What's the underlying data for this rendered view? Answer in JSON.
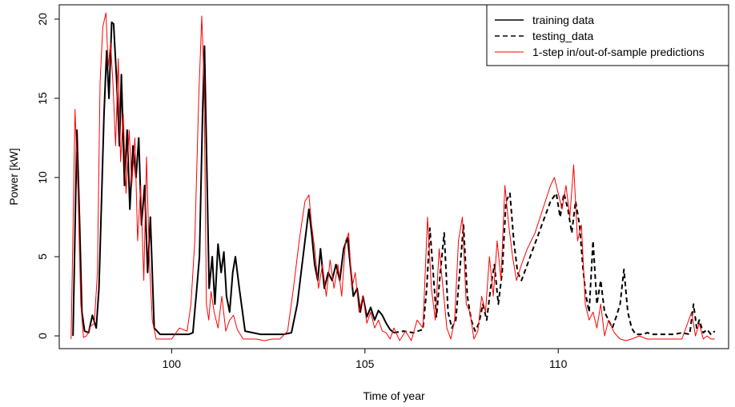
{
  "chart_data": {
    "type": "line",
    "title": "",
    "xlabel": "Time of year",
    "ylabel": "Power [kW]",
    "xlim": [
      97.3,
      114.2
    ],
    "ylim": [
      -0.3,
      20.4
    ],
    "x_ticks": [
      100,
      105,
      110
    ],
    "y_ticks": [
      0,
      5,
      10,
      15,
      20
    ],
    "grid": false,
    "legend_position": "top-right",
    "series": [
      {
        "name": "training data",
        "color": "#000000",
        "style": "solid",
        "x": [
          97.45,
          97.55,
          97.62,
          97.68,
          97.75,
          97.85,
          97.95,
          98.05,
          98.12,
          98.18,
          98.25,
          98.32,
          98.38,
          98.45,
          98.5,
          98.58,
          98.65,
          98.7,
          98.78,
          98.85,
          98.92,
          99.0,
          99.08,
          99.15,
          99.22,
          99.3,
          99.38,
          99.45,
          99.55,
          99.7,
          99.9,
          100.1,
          100.3,
          100.45,
          100.55,
          100.65,
          100.72,
          100.8,
          100.85,
          100.9,
          100.97,
          101.05,
          101.12,
          101.2,
          101.28,
          101.35,
          101.42,
          101.5,
          101.58,
          101.65,
          101.75,
          101.9,
          102.1,
          102.3,
          102.5,
          102.7,
          102.9,
          103.1,
          103.25,
          103.35,
          103.45,
          103.55,
          103.62,
          103.7,
          103.78,
          103.85,
          103.95,
          104.05,
          104.15,
          104.25,
          104.35,
          104.45,
          104.55,
          104.62,
          104.7,
          104.8,
          104.88,
          104.95,
          105.05,
          105.15,
          105.25,
          105.35,
          105.45,
          105.55,
          105.65,
          105.75
        ],
        "values": [
          0.0,
          13.0,
          7.0,
          1.5,
          0.3,
          0.2,
          1.3,
          0.5,
          3.0,
          8.0,
          14.0,
          18.0,
          15.0,
          19.8,
          19.7,
          16.0,
          12.0,
          16.5,
          9.5,
          13.0,
          8.0,
          12.0,
          10.0,
          12.5,
          7.0,
          9.5,
          4.0,
          7.5,
          0.5,
          0.1,
          0.1,
          0.1,
          0.1,
          0.1,
          0.2,
          3.0,
          5.0,
          14.0,
          18.3,
          12.0,
          3.0,
          5.0,
          2.0,
          5.8,
          4.0,
          5.3,
          2.5,
          1.5,
          4.0,
          5.0,
          3.0,
          0.3,
          0.2,
          0.1,
          0.1,
          0.1,
          0.1,
          0.2,
          2.0,
          4.0,
          6.0,
          8.0,
          6.5,
          4.5,
          3.5,
          5.5,
          3.0,
          4.0,
          3.5,
          4.5,
          3.5,
          5.5,
          6.2,
          4.5,
          2.5,
          3.0,
          1.5,
          2.5,
          1.2,
          1.8,
          1.0,
          1.6,
          1.3,
          0.8,
          0.4,
          0.2
        ]
      },
      {
        "name": "testing_data",
        "color": "#000000",
        "style": "dashed",
        "x": [
          105.75,
          106.0,
          106.25,
          106.5,
          106.6,
          106.68,
          106.75,
          106.85,
          106.95,
          107.05,
          107.15,
          107.25,
          107.35,
          107.45,
          107.55,
          107.65,
          107.75,
          107.85,
          107.95,
          108.05,
          108.15,
          108.25,
          108.35,
          108.45,
          108.55,
          108.65,
          108.75,
          108.85,
          108.95,
          109.05,
          109.2,
          109.35,
          109.5,
          109.65,
          109.8,
          109.95,
          110.05,
          110.15,
          110.25,
          110.35,
          110.45,
          110.55,
          110.65,
          110.72,
          110.8,
          110.9,
          111.0,
          111.1,
          111.2,
          111.3,
          111.4,
          111.5,
          111.6,
          111.7,
          111.8,
          111.9,
          112.0,
          112.1,
          112.2,
          112.3,
          112.45,
          112.6,
          112.8,
          113.0,
          113.2,
          113.4,
          113.5,
          113.58,
          113.65,
          113.75,
          113.85,
          113.95,
          114.05
        ],
        "values": [
          0.2,
          0.3,
          0.2,
          0.4,
          3.0,
          6.8,
          4.5,
          1.2,
          4.0,
          6.5,
          1.5,
          0.5,
          1.0,
          4.0,
          7.0,
          2.5,
          1.0,
          0.3,
          0.8,
          2.0,
          1.0,
          3.0,
          4.5,
          2.0,
          4.0,
          8.5,
          9.0,
          6.0,
          4.0,
          3.5,
          4.5,
          5.5,
          6.5,
          7.5,
          8.5,
          9.0,
          7.5,
          9.0,
          8.0,
          6.5,
          8.5,
          7.0,
          4.0,
          2.5,
          1.5,
          6.0,
          2.0,
          3.5,
          1.5,
          1.0,
          0.5,
          1.2,
          2.0,
          4.2,
          1.5,
          0.5,
          0.1,
          0.1,
          0.1,
          0.2,
          0.1,
          0.1,
          0.1,
          0.1,
          0.2,
          0.1,
          2.0,
          0.5,
          1.0,
          0.2,
          0.4,
          0.1,
          0.3
        ]
      },
      {
        "name": "1-step in/out-of-sample predictions",
        "color": "#ff0000",
        "style": "solid",
        "x": [
          97.4,
          97.5,
          97.58,
          97.65,
          97.72,
          97.8,
          97.9,
          98.0,
          98.08,
          98.15,
          98.22,
          98.3,
          98.36,
          98.42,
          98.48,
          98.55,
          98.62,
          98.68,
          98.75,
          98.82,
          98.9,
          98.97,
          99.05,
          99.12,
          99.2,
          99.28,
          99.35,
          99.42,
          99.5,
          99.6,
          99.8,
          100.0,
          100.2,
          100.4,
          100.5,
          100.6,
          100.7,
          100.78,
          100.84,
          100.9,
          100.96,
          101.02,
          101.1,
          101.2,
          101.3,
          101.4,
          101.5,
          101.6,
          101.7,
          101.85,
          102.0,
          102.2,
          102.4,
          102.6,
          102.8,
          103.0,
          103.15,
          103.3,
          103.45,
          103.55,
          103.62,
          103.7,
          103.8,
          103.9,
          104.0,
          104.1,
          104.2,
          104.3,
          104.4,
          104.5,
          104.58,
          104.66,
          104.75,
          104.85,
          104.95,
          105.05,
          105.15,
          105.25,
          105.35,
          105.45,
          105.55,
          105.65,
          105.75,
          105.9,
          106.05,
          106.2,
          106.35,
          106.5,
          106.62,
          106.72,
          106.82,
          106.92,
          107.02,
          107.12,
          107.22,
          107.32,
          107.42,
          107.52,
          107.62,
          107.72,
          107.82,
          107.92,
          108.02,
          108.12,
          108.22,
          108.32,
          108.42,
          108.52,
          108.62,
          108.72,
          108.82,
          108.92,
          109.05,
          109.2,
          109.4,
          109.6,
          109.8,
          109.9,
          110.0,
          110.1,
          110.2,
          110.3,
          110.4,
          110.5,
          110.6,
          110.7,
          110.8,
          110.9,
          111.0,
          111.1,
          111.2,
          111.3,
          111.45,
          111.6,
          111.75,
          111.9,
          112.1,
          112.3,
          112.6,
          112.9,
          113.2,
          113.45,
          113.55,
          113.65,
          113.75,
          113.85,
          113.95,
          114.05
        ],
        "values": [
          -0.2,
          14.3,
          9.0,
          2.0,
          -0.1,
          0.0,
          0.6,
          0.8,
          4.0,
          16.0,
          19.5,
          20.4,
          17.0,
          18.5,
          16.0,
          12.0,
          17.5,
          11.0,
          14.0,
          9.0,
          13.0,
          9.5,
          12.5,
          6.0,
          9.5,
          3.5,
          11.3,
          5.0,
          1.0,
          -0.2,
          -0.2,
          -0.2,
          0.5,
          0.3,
          2.0,
          6.0,
          15.0,
          20.2,
          16.0,
          2.0,
          1.0,
          2.8,
          1.5,
          0.5,
          2.5,
          0.3,
          1.0,
          1.3,
          0.4,
          -0.2,
          -0.2,
          -0.2,
          -0.3,
          -0.2,
          -0.2,
          0.3,
          3.0,
          6.0,
          8.5,
          8.9,
          7.0,
          5.5,
          3.0,
          4.5,
          2.5,
          4.8,
          3.0,
          4.5,
          2.5,
          6.0,
          6.5,
          3.0,
          4.0,
          1.5,
          2.5,
          0.8,
          1.5,
          0.5,
          1.0,
          0.3,
          0.2,
          -0.2,
          0.5,
          -0.3,
          0.3,
          -0.3,
          1.0,
          0.5,
          7.5,
          3.0,
          1.0,
          5.5,
          3.0,
          0.5,
          -0.2,
          1.0,
          6.0,
          7.5,
          2.0,
          1.5,
          -0.2,
          0.3,
          2.5,
          1.5,
          5.0,
          2.5,
          6.0,
          3.5,
          9.5,
          7.0,
          5.0,
          3.5,
          4.5,
          5.5,
          6.5,
          8.0,
          9.5,
          10.0,
          9.0,
          8.0,
          9.5,
          7.5,
          10.8,
          6.0,
          7.0,
          2.0,
          1.0,
          1.5,
          0.5,
          2.0,
          0.0,
          1.0,
          0.2,
          -0.2,
          -0.3,
          -0.2,
          0.0,
          -0.2,
          -0.2,
          -0.2,
          -0.2,
          1.5,
          0.0,
          0.8,
          -0.2,
          0.0,
          -0.2,
          -0.2
        ]
      }
    ]
  }
}
